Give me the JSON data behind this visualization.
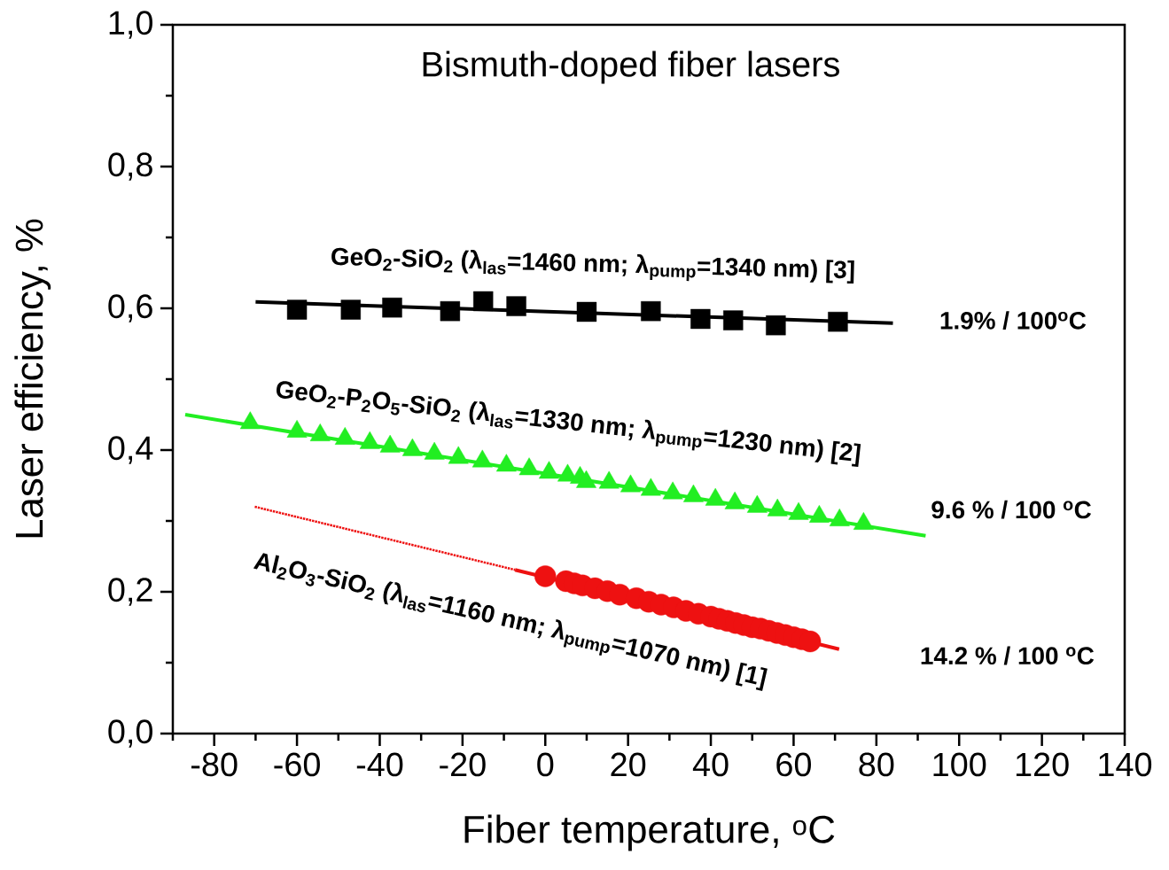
{
  "chart_data": {
    "type": "scatter",
    "title": "Bismuth-doped fiber lasers",
    "xlabel": "Fiber temperature, $^{o}$C",
    "ylabel": "Laser efficiency, %",
    "xlim": [
      -90,
      140
    ],
    "ylim": [
      0,
      1.0
    ],
    "xticks": [
      {
        "value": -90,
        "label": null
      },
      -80,
      {
        "value": -70,
        "label": null
      },
      -60,
      {
        "value": -50,
        "label": null
      },
      -40,
      {
        "value": -30,
        "label": null
      },
      -20,
      {
        "value": -10,
        "label": null
      },
      0,
      {
        "value": 10,
        "label": null
      },
      20,
      {
        "value": 30,
        "label": null
      },
      40,
      {
        "value": 50,
        "label": null
      },
      60,
      {
        "value": 70,
        "label": null
      },
      80,
      {
        "value": 90,
        "label": null
      },
      100,
      {
        "value": 110,
        "label": null
      },
      120,
      {
        "value": 130,
        "label": null
      },
      140
    ],
    "yticks": [
      {
        "value": 0,
        "label": "0,0"
      },
      {
        "value": 0.1,
        "label": null
      },
      {
        "value": 0.2,
        "label": "0,2"
      },
      {
        "value": 0.3,
        "label": null
      },
      {
        "value": 0.4,
        "label": "0,4"
      },
      {
        "value": 0.5,
        "label": null
      },
      {
        "value": 0.6,
        "label": "0,6"
      },
      {
        "value": 0.7,
        "label": null
      },
      {
        "value": 0.8,
        "label": "0,8"
      },
      {
        "value": 0.9,
        "label": null
      },
      {
        "value": 1.0,
        "label": "1,0"
      }
    ],
    "grid": false,
    "legend": false,
    "series": [
      {
        "marker": "square",
        "color": "#000000",
        "x": [
          -60,
          -47,
          -37,
          -23,
          -15,
          -7,
          10,
          25.5,
          37.5,
          45.4,
          55.7,
          70.7
        ],
        "values": [
          0.598,
          0.598,
          0.601,
          0.596,
          0.61,
          0.603,
          0.595,
          0.596,
          0.585,
          0.583,
          0.576,
          0.581
        ]
      },
      {
        "type": "line",
        "marker": "none",
        "line_style": "solid",
        "color": "#000000",
        "x": [
          -70,
          84
        ],
        "values": [
          0.609,
          0.579
        ]
      },
      {
        "marker": "triangle",
        "color": "#22ee22",
        "x": [
          -71.3,
          -60,
          -54.4,
          -48.4,
          -42.4,
          -37.5,
          -32.1,
          -26.8,
          -21,
          -15.2,
          -9.4,
          -3.9,
          0.9,
          5.4,
          8.4,
          9.9,
          15.4,
          20.6,
          25.5,
          30.8,
          35.8,
          41.1,
          45.8,
          51.2,
          56.1,
          61.2,
          66.2,
          71.1,
          76.9
        ],
        "values": [
          0.438,
          0.426,
          0.421,
          0.416,
          0.41,
          0.405,
          0.4,
          0.395,
          0.389,
          0.384,
          0.378,
          0.373,
          0.368,
          0.364,
          0.361,
          0.355,
          0.354,
          0.349,
          0.344,
          0.339,
          0.335,
          0.33,
          0.325,
          0.32,
          0.315,
          0.31,
          0.306,
          0.301,
          0.296
        ]
      },
      {
        "type": "line",
        "marker": "none",
        "line_style": "solid",
        "color": "#22ee22",
        "x": [
          -87,
          91.9
        ],
        "values": [
          0.45,
          0.279
        ]
      },
      {
        "marker": "circle",
        "color": "#ee1111",
        "x": [
          0,
          5,
          7,
          9,
          12,
          15,
          18,
          22,
          25,
          28,
          31,
          34,
          37,
          40,
          42,
          44,
          46,
          48,
          50,
          52,
          54,
          56,
          58,
          60,
          62,
          64
        ],
        "values": [
          0.222,
          0.215,
          0.212,
          0.209,
          0.205,
          0.201,
          0.196,
          0.191,
          0.186,
          0.182,
          0.178,
          0.173,
          0.169,
          0.165,
          0.162,
          0.159,
          0.156,
          0.153,
          0.15,
          0.148,
          0.145,
          0.142,
          0.139,
          0.136,
          0.133,
          0.13
        ]
      },
      {
        "type": "line",
        "marker": "none",
        "line_style": "solid",
        "color": "#ee1111",
        "x": [
          -7.3,
          71
        ],
        "values": [
          0.231,
          0.119
        ]
      },
      {
        "type": "line",
        "marker": "none",
        "line_style": "dotted",
        "color": "#ee1111",
        "x": [
          -70.2,
          -7.3
        ],
        "values": [
          0.32,
          0.231
        ]
      }
    ],
    "annotations": [
      "GeO$_{2}$-SiO$_{2}$ (λ$_{las}$=1460 nm; λ$_{pump}$=1340 nm) [3]",
      "GeO$_{2}$-P$_{2}$O$_{5}$-SiO$_{2}$ (λ$_{las}$=1330 nm; λ$_{pump}$=1230 nm) [2]",
      "Al$_{2}$O$_{3}$-SiO$_{2}$ (λ$_{las}$=1160 nm; λ$_{pump}$=1070 nm) [1]",
      "1.9% / 100$^{o}$C",
      "9.6 % / 100 $^{o}$C",
      "14.2 % / 100 $^{o}$C"
    ]
  }
}
